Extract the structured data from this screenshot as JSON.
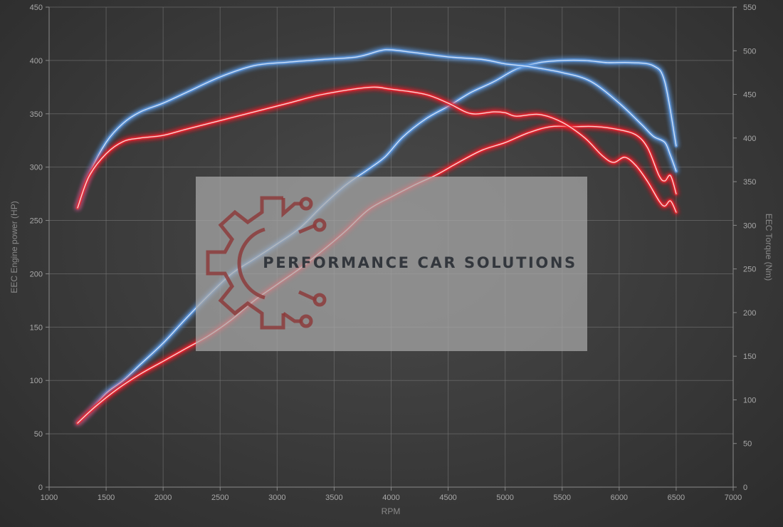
{
  "chart_data": {
    "type": "line",
    "xlabel": "RPM",
    "ylabel_left": "EEC Engine power (HP)",
    "ylabel_right": "EEC Torque (Nm)",
    "xlim": [
      1000,
      7000
    ],
    "x_ticks": [
      1000,
      1500,
      2000,
      2500,
      3000,
      3500,
      4000,
      4500,
      5000,
      5500,
      6000,
      6500,
      7000
    ],
    "ylim_left": [
      0,
      450
    ],
    "y_ticks_left": [
      0,
      50,
      100,
      150,
      200,
      250,
      300,
      350,
      400,
      450
    ],
    "ylim_right": [
      0,
      550
    ],
    "y_ticks_right": [
      0,
      50,
      100,
      150,
      200,
      250,
      300,
      350,
      400,
      450,
      500,
      550
    ],
    "grid": true,
    "colors": {
      "tuned": "#5b95dc",
      "stock": "#e8242c"
    },
    "series": [
      {
        "axis": "left",
        "variant": "tuned",
        "x": [
          1250,
          1350,
          1500,
          1650,
          1800,
          2000,
          2200,
          2400,
          2600,
          2800,
          3000,
          3200,
          3400,
          3600,
          3800,
          3950,
          4100,
          4300,
          4500,
          4700,
          4900,
          5100,
          5300,
          5500,
          5700,
          5900,
          6100,
          6300,
          6400,
          6500
        ],
        "y": [
          60,
          70,
          88,
          100,
          115,
          135,
          158,
          180,
          200,
          214,
          228,
          243,
          264,
          283,
          298,
          310,
          328,
          345,
          357,
          370,
          380,
          392,
          398,
          400,
          400,
          398,
          398,
          395,
          380,
          320
        ]
      },
      {
        "axis": "right",
        "variant": "tuned",
        "x": [
          1250,
          1350,
          1500,
          1650,
          1800,
          2000,
          2200,
          2500,
          2800,
          3100,
          3400,
          3700,
          3900,
          4000,
          4200,
          4500,
          4800,
          5000,
          5200,
          5500,
          5750,
          6000,
          6200,
          6300,
          6400,
          6450,
          6500
        ],
        "y": [
          320,
          358,
          395,
          417,
          430,
          440,
          452,
          470,
          483,
          487,
          490,
          493,
          500,
          501,
          498,
          493,
          490,
          485,
          482,
          475,
          465,
          440,
          415,
          402,
          395,
          380,
          362
        ]
      },
      {
        "axis": "left",
        "variant": "stock",
        "x": [
          1250,
          1400,
          1600,
          1800,
          2000,
          2200,
          2400,
          2600,
          2800,
          3000,
          3200,
          3400,
          3600,
          3800,
          4000,
          4200,
          4400,
          4600,
          4800,
          5000,
          5200,
          5400,
          5600,
          5800,
          6000,
          6150,
          6250,
          6350,
          6400,
          6450,
          6500
        ],
        "y": [
          60,
          75,
          92,
          106,
          118,
          130,
          142,
          157,
          175,
          190,
          205,
          222,
          240,
          260,
          272,
          283,
          293,
          305,
          316,
          323,
          332,
          338,
          338,
          338,
          335,
          330,
          318,
          292,
          287,
          292,
          275
        ]
      },
      {
        "axis": "right",
        "variant": "stock",
        "x": [
          1250,
          1350,
          1500,
          1650,
          1800,
          2000,
          2200,
          2500,
          2800,
          3100,
          3400,
          3800,
          4000,
          4300,
          4500,
          4700,
          4900,
          5000,
          5100,
          5300,
          5500,
          5700,
          5850,
          5950,
          6050,
          6150,
          6250,
          6350,
          6400,
          6450,
          6500
        ],
        "y": [
          320,
          356,
          382,
          396,
          400,
          403,
          410,
          420,
          430,
          440,
          450,
          458,
          456,
          450,
          440,
          428,
          430,
          429,
          425,
          427,
          418,
          400,
          380,
          372,
          378,
          368,
          350,
          328,
          322,
          328,
          315
        ]
      }
    ]
  },
  "watermark": {
    "text": "PERFORMANCE CAR SOLUTIONS",
    "logo_icon": "gear-circuit-logo-icon"
  }
}
